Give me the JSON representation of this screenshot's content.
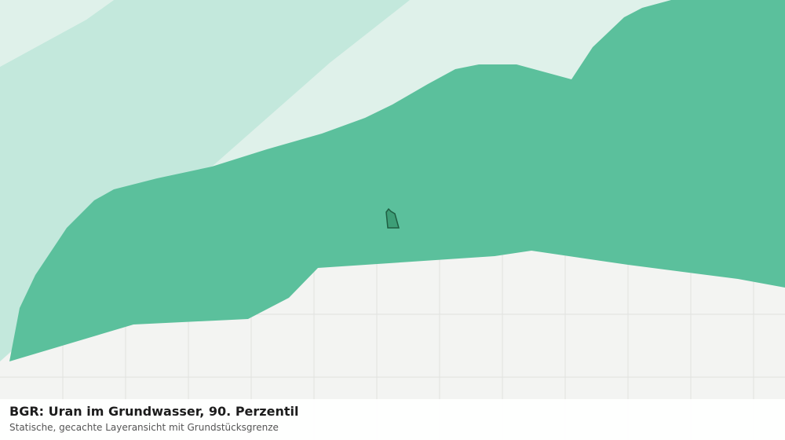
{
  "caption": {
    "title": "BGR: Uran im Grundwasser, 90. Perzentil",
    "subtitle": "Statische, gecachte Layeransicht mit Grundstücksgrenze"
  }
}
